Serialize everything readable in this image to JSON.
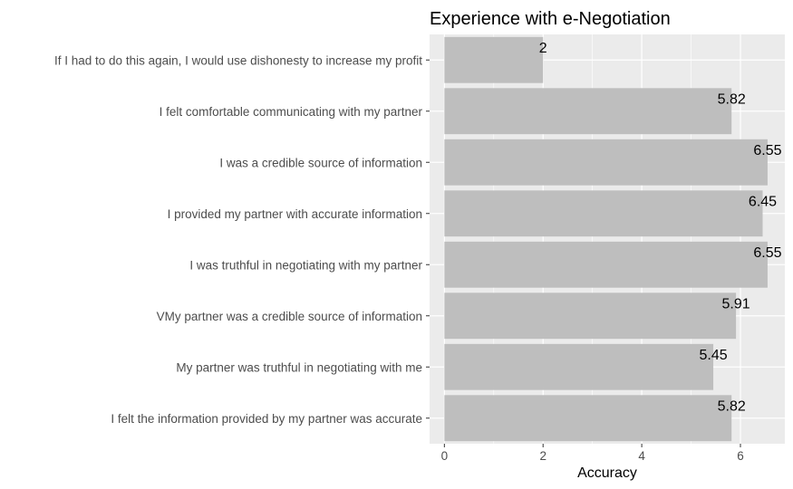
{
  "chart_data": {
    "type": "bar",
    "orientation": "horizontal",
    "title": "Experience with e-Negotiation",
    "xlabel": "Accuracy",
    "ylabel": "",
    "categories": [
      "If I had to do this again, I would use dishonesty to increase my profit",
      "I felt comfortable communicating with my partner",
      "I was a credible source of information",
      "I provided my partner with accurate information",
      "I was truthful in negotiating with my partner",
      "VMy partner was a credible source of information",
      "My partner was truthful in negotiating with me",
      "I felt the information provided by my partner was accurate"
    ],
    "values": [
      2,
      5.82,
      6.55,
      6.45,
      6.55,
      5.91,
      5.45,
      5.82
    ],
    "data_labels": [
      "2",
      "5.82",
      "6.55",
      "6.45",
      "6.55",
      "5.91",
      "5.45",
      "5.82"
    ],
    "xlim": [
      -0.3,
      6.9
    ],
    "xticks": [
      0,
      2,
      4,
      6
    ],
    "xtick_labels": [
      "0",
      "2",
      "4",
      "6"
    ],
    "grid": true,
    "legend": "none",
    "colors": {
      "bar": "#bebebe",
      "panel_background": "#ebebeb",
      "grid": "#ffffff",
      "label_text": "#4d4d4d"
    }
  }
}
